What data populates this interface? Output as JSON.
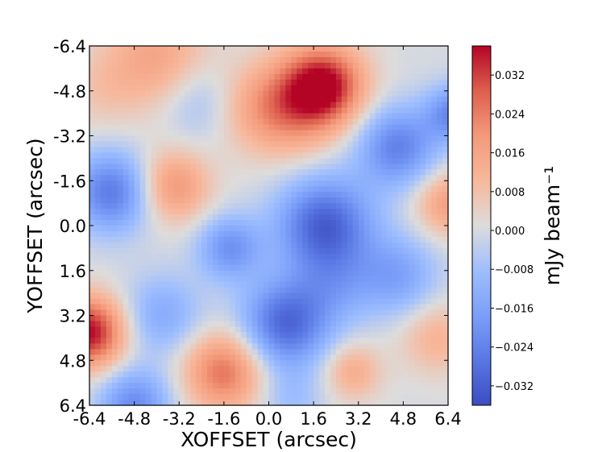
{
  "chart_data": {
    "type": "heatmap",
    "title": "",
    "xlabel": "XOFFSET (arcsec)",
    "ylabel": "YOFFSET (arcsec)",
    "xlim": [
      -6.4,
      6.4
    ],
    "ylim": [
      6.4,
      -6.4
    ],
    "x_ticks": [
      "-6.4",
      "-4.8",
      "-3.2",
      "-1.6",
      "0.0",
      "1.6",
      "3.2",
      "4.8",
      "6.4"
    ],
    "y_ticks": [
      "-6.4",
      "-4.8",
      "-3.2",
      "-1.6",
      "0.0",
      "1.6",
      "3.2",
      "4.8",
      "6.4"
    ],
    "colorbar": {
      "label": "mJy beam⁻¹",
      "range": [
        -0.036,
        0.038
      ],
      "ticks": [
        "0.032",
        "0.024",
        "0.016",
        "0.008",
        "0.000",
        "−0.008",
        "−0.016",
        "−0.024",
        "−0.032"
      ],
      "colormap": "coolwarm",
      "low_color": "#3b4cc0",
      "mid_color": "#dddddd",
      "high_color": "#b40426"
    },
    "blobs": [
      {
        "x": 2.0,
        "y": -5.0,
        "amp": 0.036,
        "sigma": 1.0
      },
      {
        "x": 0.6,
        "y": -4.2,
        "amp": 0.022,
        "sigma": 1.2
      },
      {
        "x": -6.4,
        "y": 3.8,
        "amp": 0.038,
        "sigma": 0.9
      },
      {
        "x": -1.6,
        "y": 5.2,
        "amp": 0.026,
        "sigma": 1.0
      },
      {
        "x": -3.4,
        "y": -1.4,
        "amp": 0.02,
        "sigma": 0.9
      },
      {
        "x": -4.0,
        "y": -6.0,
        "amp": 0.016,
        "sigma": 1.3
      },
      {
        "x": -6.0,
        "y": -4.8,
        "amp": 0.006,
        "sigma": 1.0
      },
      {
        "x": 6.4,
        "y": -0.8,
        "amp": 0.018,
        "sigma": 0.8
      },
      {
        "x": 6.0,
        "y": 4.0,
        "amp": 0.012,
        "sigma": 0.9
      },
      {
        "x": 3.0,
        "y": 5.2,
        "amp": 0.014,
        "sigma": 0.7
      },
      {
        "x": -1.0,
        "y": -4.2,
        "amp": 0.006,
        "sigma": 1.0
      },
      {
        "x": 2.0,
        "y": 0.0,
        "amp": -0.032,
        "sigma": 1.2
      },
      {
        "x": 0.6,
        "y": 3.5,
        "amp": -0.03,
        "sigma": 1.1
      },
      {
        "x": -5.6,
        "y": -1.2,
        "amp": -0.026,
        "sigma": 1.0
      },
      {
        "x": 4.6,
        "y": -2.8,
        "amp": -0.024,
        "sigma": 1.0
      },
      {
        "x": 6.6,
        "y": -4.0,
        "amp": -0.022,
        "sigma": 0.7
      },
      {
        "x": -1.4,
        "y": 0.8,
        "amp": -0.02,
        "sigma": 0.8
      },
      {
        "x": -4.8,
        "y": 6.4,
        "amp": -0.022,
        "sigma": 0.9
      },
      {
        "x": 4.6,
        "y": 1.8,
        "amp": -0.016,
        "sigma": 1.0
      },
      {
        "x": -2.4,
        "y": -4.4,
        "amp": -0.01,
        "sigma": 1.0
      },
      {
        "x": -3.8,
        "y": 3.2,
        "amp": -0.014,
        "sigma": 1.0
      },
      {
        "x": 2.4,
        "y": 2.2,
        "amp": -0.01,
        "sigma": 1.0
      },
      {
        "x": 0.8,
        "y": 6.2,
        "amp": -0.008,
        "sigma": 0.8
      }
    ]
  }
}
